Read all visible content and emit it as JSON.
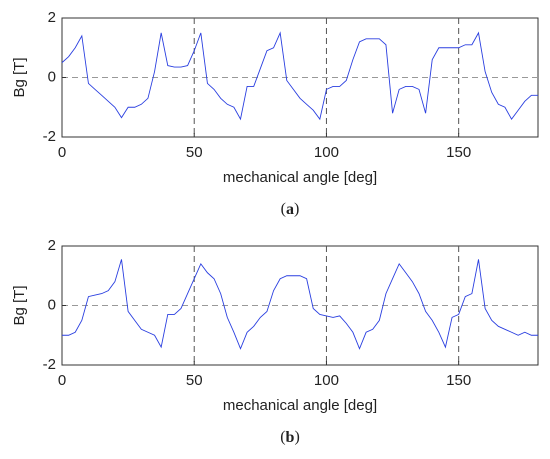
{
  "chart_data": [
    {
      "type": "line",
      "caption": "a",
      "xlabel": "mechanical angle [deg]",
      "ylabel": "Bg [T]",
      "xlim": [
        0,
        180
      ],
      "xticks": [
        0,
        50,
        100,
        150
      ],
      "ylim": [
        -2,
        2
      ],
      "yticks": [
        -2,
        0,
        2
      ],
      "vlines": [
        50,
        100,
        150
      ],
      "hlines": [
        0
      ],
      "x": [
        0,
        2.5,
        5,
        7.5,
        10,
        12.5,
        15,
        17.5,
        20,
        22.5,
        25,
        27.5,
        30,
        32.5,
        35,
        37.5,
        40,
        42.5,
        45,
        47.5,
        50,
        52.5,
        55,
        57.5,
        60,
        62.5,
        65,
        67.5,
        70,
        72.5,
        75,
        77.5,
        80,
        82.5,
        85,
        87.5,
        90,
        92.5,
        95,
        97.5,
        100,
        102.5,
        105,
        107.5,
        110,
        112.5,
        115,
        117.5,
        120,
        122.5,
        125,
        127.5,
        130,
        132.5,
        135,
        137.5,
        140,
        142.5,
        145,
        147.5,
        150,
        152.5,
        155,
        157.5,
        160,
        162.5,
        165,
        167.5,
        170,
        172.5,
        175,
        177.5,
        180
      ],
      "series": [
        {
          "color": "#2a3fe0",
          "values": [
            0.5,
            0.7,
            1.0,
            1.4,
            -0.2,
            -0.4,
            -0.6,
            -0.8,
            -1.0,
            -1.35,
            -1.0,
            -1.0,
            -0.9,
            -0.7,
            0.2,
            1.5,
            0.4,
            0.35,
            0.35,
            0.4,
            0.9,
            1.5,
            -0.2,
            -0.4,
            -0.7,
            -0.9,
            -1.0,
            -1.4,
            -0.3,
            -0.3,
            0.3,
            0.9,
            1.0,
            1.5,
            -0.1,
            -0.4,
            -0.7,
            -0.9,
            -1.1,
            -1.4,
            -0.4,
            -0.3,
            -0.3,
            -0.1,
            0.6,
            1.2,
            1.3,
            1.3,
            1.3,
            1.1,
            -1.2,
            -0.4,
            -0.3,
            -0.3,
            -0.4,
            -1.2,
            0.6,
            1.0,
            1.0,
            1.0,
            1.0,
            1.1,
            1.1,
            1.5,
            0.2,
            -0.5,
            -0.9,
            -1.0,
            -1.4,
            -1.1,
            -0.8,
            -0.6,
            -0.6
          ]
        }
      ]
    },
    {
      "type": "line",
      "caption": "b",
      "xlabel": "mechanical angle [deg]",
      "ylabel": "Bg [T]",
      "xlim": [
        0,
        180
      ],
      "xticks": [
        0,
        50,
        100,
        150
      ],
      "ylim": [
        -2,
        2
      ],
      "yticks": [
        -2,
        0,
        2
      ],
      "vlines": [
        50,
        100,
        150
      ],
      "hlines": [
        0
      ],
      "x": [
        0,
        2.5,
        5,
        7.5,
        10,
        12.5,
        15,
        17.5,
        20,
        22.5,
        25,
        27.5,
        30,
        32.5,
        35,
        37.5,
        40,
        42.5,
        45,
        47.5,
        50,
        52.5,
        55,
        57.5,
        60,
        62.5,
        65,
        67.5,
        70,
        72.5,
        75,
        77.5,
        80,
        82.5,
        85,
        87.5,
        90,
        92.5,
        95,
        97.5,
        100,
        102.5,
        105,
        107.5,
        110,
        112.5,
        115,
        117.5,
        120,
        122.5,
        125,
        127.5,
        130,
        132.5,
        135,
        137.5,
        140,
        142.5,
        145,
        147.5,
        150,
        152.5,
        155,
        157.5,
        160,
        162.5,
        165,
        167.5,
        170,
        172.5,
        175,
        177.5,
        180
      ],
      "series": [
        {
          "color": "#2a3fe0",
          "values": [
            -1.0,
            -1.0,
            -0.9,
            -0.5,
            0.3,
            0.35,
            0.4,
            0.5,
            0.8,
            1.55,
            -0.2,
            -0.5,
            -0.8,
            -0.9,
            -1.0,
            -1.4,
            -0.3,
            -0.3,
            -0.1,
            0.4,
            0.9,
            1.4,
            1.1,
            0.9,
            0.4,
            -0.4,
            -0.9,
            -1.45,
            -0.9,
            -0.7,
            -0.4,
            -0.2,
            0.5,
            0.9,
            1.0,
            1.0,
            1.0,
            0.9,
            -0.1,
            -0.3,
            -0.35,
            -0.4,
            -0.35,
            -0.6,
            -0.9,
            -1.45,
            -0.9,
            -0.8,
            -0.5,
            0.4,
            0.9,
            1.4,
            1.1,
            0.8,
            0.4,
            -0.2,
            -0.5,
            -0.9,
            -1.4,
            -0.4,
            -0.3,
            0.3,
            0.4,
            1.55,
            -0.1,
            -0.5,
            -0.7,
            -0.8,
            -0.9,
            -1.0,
            -0.9,
            -1.0,
            -1.0
          ]
        }
      ]
    }
  ]
}
